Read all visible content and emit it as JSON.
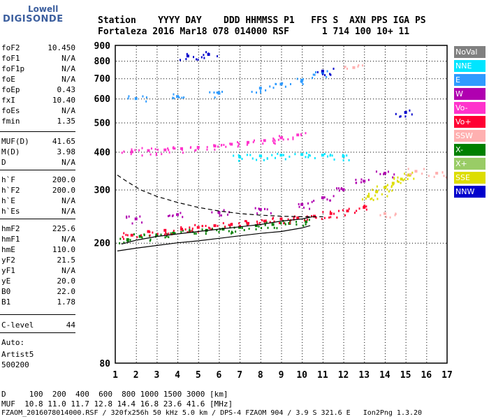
{
  "logo": {
    "line1": "Lowell",
    "line2": "DIGISONDE"
  },
  "header": {
    "labels": "Station    YYYY DAY    DDD HHMMSS P1   FFS S  AXN PPS IGA PS",
    "values": "Fortaleza 2016 Mar18 078 014000 RSF      1 714 100 10+ 11"
  },
  "params": [
    {
      "name": "foF2",
      "value": "10.450"
    },
    {
      "name": "foF1",
      "value": "N/A"
    },
    {
      "name": "foF1p",
      "value": "N/A"
    },
    {
      "name": "foE",
      "value": "N/A"
    },
    {
      "name": "foEp",
      "value": "0.43"
    },
    {
      "name": "fxI",
      "value": "10.40"
    },
    {
      "name": "foEs",
      "value": "N/A"
    },
    {
      "name": "fmin",
      "value": "1.35"
    },
    {
      "name": "MUF(D)",
      "value": "41.65"
    },
    {
      "name": "M(D)",
      "value": "3.98"
    },
    {
      "name": "D",
      "value": "N/A"
    },
    {
      "name": "h`F",
      "value": "200.0"
    },
    {
      "name": "h`F2",
      "value": "200.0"
    },
    {
      "name": "h`E",
      "value": "N/A"
    },
    {
      "name": "h`Es",
      "value": "N/A"
    },
    {
      "name": "hmF2",
      "value": "225.6"
    },
    {
      "name": "hmF1",
      "value": "N/A"
    },
    {
      "name": "hmE",
      "value": "110.0"
    },
    {
      "name": "yF2",
      "value": "21.5"
    },
    {
      "name": "yF1",
      "value": "N/A"
    },
    {
      "name": "yE",
      "value": "20.0"
    },
    {
      "name": "B0",
      "value": "22.0"
    },
    {
      "name": "B1",
      "value": "1.78"
    },
    {
      "name": "C-level",
      "value": "44"
    }
  ],
  "autoscale": {
    "line1": "Auto:",
    "line2": "Artist5",
    "line3": "500200"
  },
  "footer": {
    "d_row": "D     100  200  400  600  800 1000 1500 3000 [km]",
    "muf_row": "MUF  10.8 11.0 11.7 12.8 14.4 16.8 23.6 41.6 [MHz]",
    "file_row": "FZAOM_2016078014000.RSF / 320fx256h 50 kHz 5.0 km / DPS-4 FZAOM 904 / 3.9 S 321.6 E   Ion2Png 1.3.20"
  },
  "legend": [
    {
      "label": "NoVal",
      "color": "#808080"
    },
    {
      "label": "NNE",
      "color": "#00e5ff"
    },
    {
      "label": "E",
      "color": "#2f9bff"
    },
    {
      "label": "W",
      "color": "#b000b0"
    },
    {
      "label": "Vo-",
      "color": "#ff33cc"
    },
    {
      "label": "Vo+",
      "color": "#ff0033"
    },
    {
      "label": "SSW",
      "color": "#ffb0b0"
    },
    {
      "label": "X-",
      "color": "#008000"
    },
    {
      "label": "X+",
      "color": "#99cc66"
    },
    {
      "label": "SSE",
      "color": "#dddd00"
    },
    {
      "label": "NNW",
      "color": "#0000cc"
    }
  ],
  "chart_data": {
    "type": "scatter",
    "xlabel": "",
    "ylabel": "",
    "xlim": [
      1,
      17
    ],
    "ylim": [
      80,
      900
    ],
    "y_scale": "log",
    "x_ticks": [
      1,
      2,
      3,
      4,
      5,
      6,
      7,
      8,
      9,
      10,
      11,
      12,
      13,
      14,
      15,
      16,
      17
    ],
    "y_ticks": [
      80,
      200,
      300,
      400,
      500,
      600,
      700,
      800,
      900
    ],
    "grid": true,
    "series": [
      {
        "name": "X-",
        "color": "#008000",
        "x": [
          1.6,
          2.2,
          3.0,
          3.8,
          4.6,
          5.4,
          6.2,
          7.0,
          7.8,
          8.6,
          9.4,
          10.2
        ],
        "y": [
          205,
          210,
          212,
          215,
          218,
          220,
          222,
          225,
          228,
          230,
          232,
          235
        ]
      },
      {
        "name": "Vo+",
        "color": "#ff0033",
        "x": [
          1.8,
          2.6,
          3.4,
          4.2,
          5.0,
          5.8,
          6.6,
          7.4,
          8.2,
          9.0,
          9.8,
          10.6,
          11.4,
          12.2,
          13.0
        ],
        "y": [
          212,
          218,
          220,
          222,
          225,
          228,
          230,
          232,
          236,
          240,
          242,
          245,
          250,
          255,
          262
        ]
      },
      {
        "name": "Vo-",
        "color": "#ff33cc",
        "x": [
          1.8,
          2.6,
          3.4,
          4.2,
          5.0,
          5.8,
          6.6,
          7.4,
          8.2,
          9.0,
          9.8
        ],
        "y": [
          400,
          404,
          406,
          410,
          414,
          418,
          424,
          430,
          436,
          445,
          455
        ]
      },
      {
        "name": "W",
        "color": "#b000b0",
        "x": [
          2.0,
          4.0,
          6.0,
          8.0,
          10.0,
          11.0,
          12.0,
          13.0,
          14.0
        ],
        "y": [
          240,
          248,
          252,
          258,
          268,
          282,
          300,
          320,
          340
        ]
      },
      {
        "name": "SSE",
        "color": "#dddd00",
        "x": [
          13.2,
          13.6,
          14.0,
          14.4,
          14.8,
          15.2
        ],
        "y": [
          285,
          295,
          305,
          315,
          325,
          335
        ]
      },
      {
        "name": "NNE",
        "color": "#00e5ff",
        "x": [
          7.0,
          8.0,
          9.0,
          10.0,
          11.0,
          12.0
        ],
        "y": [
          385,
          388,
          390,
          392,
          390,
          387
        ]
      },
      {
        "name": "E",
        "color": "#2f9bff",
        "x": [
          2.0,
          4.0,
          6.0,
          8.0,
          9.0,
          10.0,
          11.0
        ],
        "y": [
          600,
          610,
          625,
          650,
          670,
          690,
          730
        ]
      },
      {
        "name": "NNW",
        "color": "#0000cc",
        "x": [
          4.5,
          5.5,
          11.0,
          15.0
        ],
        "y": [
          830,
          840,
          740,
          540
        ]
      },
      {
        "name": "SSW",
        "color": "#ffb0b0",
        "x": [
          12.5,
          14.0,
          15.5,
          16.5
        ],
        "y": [
          760,
          250,
          345,
          340
        ]
      }
    ],
    "curves": [
      {
        "name": "trace-solid",
        "style": "solid",
        "x": [
          1.1,
          2.0,
          3.0,
          4.0,
          5.0,
          6.0,
          7.0,
          8.0,
          9.0,
          10.0,
          10.4
        ],
        "y": [
          188,
          192,
          196,
          200,
          203,
          207,
          211,
          215,
          218,
          224,
          228
        ]
      },
      {
        "name": "trace-upper",
        "style": "solid",
        "x": [
          1.3,
          2.0,
          3.0,
          4.0,
          5.0,
          6.0,
          7.0,
          8.0,
          9.0,
          10.0,
          10.5
        ],
        "y": [
          198,
          204,
          210,
          214,
          218,
          222,
          226,
          230,
          236,
          240,
          244
        ]
      },
      {
        "name": "trace-dashed",
        "style": "dashed",
        "x": [
          1.1,
          1.6,
          2.2,
          3.0,
          4.0,
          5.0,
          6.0,
          7.0,
          8.0,
          9.0,
          10.0,
          11.0
        ],
        "y": [
          335,
          318,
          300,
          285,
          272,
          262,
          255,
          250,
          247,
          245,
          244,
          244
        ]
      }
    ]
  }
}
